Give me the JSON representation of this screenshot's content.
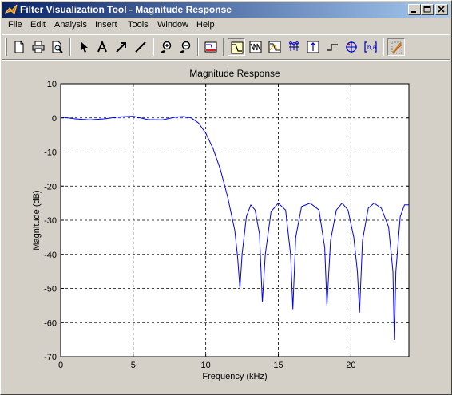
{
  "window": {
    "title": "Filter Visualization Tool - Magnitude Response",
    "buttons": [
      "minimize",
      "maximize",
      "close"
    ]
  },
  "menubar": {
    "items": [
      "File",
      "Edit",
      "Analysis",
      "Insert",
      "Tools",
      "Window",
      "Help"
    ]
  },
  "toolbar": {
    "icons": [
      "new-icon",
      "print-icon",
      "print-preview-icon",
      "pointer-icon",
      "text-icon",
      "arrow-icon",
      "line-icon",
      "zoom-in-icon",
      "zoom-out-icon",
      "filter-spec-icon",
      "magnitude-response-icon",
      "phase-response-icon",
      "mag-phase-icon",
      "group-delay-icon",
      "impulse-response-icon",
      "step-response-icon",
      "pole-zero-icon",
      "coefficients-icon",
      "legend-icon"
    ]
  },
  "chart_data": {
    "type": "line",
    "title": "Magnitude Response",
    "xlabel": "Frequency (kHz)",
    "ylabel": "Magnitude (dB)",
    "xlim": [
      0,
      24
    ],
    "ylim": [
      -70,
      10
    ],
    "xticks": [
      0,
      5,
      10,
      15,
      20
    ],
    "yticks": [
      10,
      0,
      -10,
      -20,
      -30,
      -40,
      -50,
      -60,
      -70
    ],
    "grid": true,
    "series_color": "#0000ff",
    "series": [
      {
        "x": [
          0,
          1,
          2,
          3,
          4,
          5,
          6,
          7,
          8,
          8.5,
          9,
          9.5,
          10,
          10.5,
          11,
          11.5,
          12,
          12.2,
          12.35,
          12.5,
          12.8,
          13.1,
          13.4,
          13.7,
          13.9,
          14.1,
          14.5,
          15.0,
          15.5,
          15.85,
          16.0,
          16.2,
          16.6,
          17.2,
          17.8,
          18.2,
          18.35,
          18.6,
          19.0,
          19.4,
          19.8,
          20.2,
          20.45,
          20.6,
          20.8,
          21.2,
          21.6,
          22.1,
          22.6,
          22.9,
          23.0,
          23.1,
          23.4,
          23.7,
          24.0
        ],
        "y": [
          0.3,
          -0.3,
          -0.6,
          -0.3,
          0.3,
          0.5,
          -0.5,
          -0.6,
          0.3,
          0.4,
          0,
          -1.5,
          -4.5,
          -9,
          -15,
          -23,
          -33,
          -41,
          -50,
          -40,
          -29,
          -25.5,
          -27,
          -34,
          -54,
          -40,
          -27.5,
          -25,
          -27,
          -40,
          -56,
          -35,
          -26,
          -25,
          -27,
          -38,
          -55,
          -36,
          -27,
          -25,
          -27,
          -35,
          -45,
          -57,
          -36,
          -26.5,
          -25,
          -26.5,
          -32,
          -45,
          -65,
          -45,
          -29,
          -25.5,
          -25.5
        ]
      }
    ]
  }
}
